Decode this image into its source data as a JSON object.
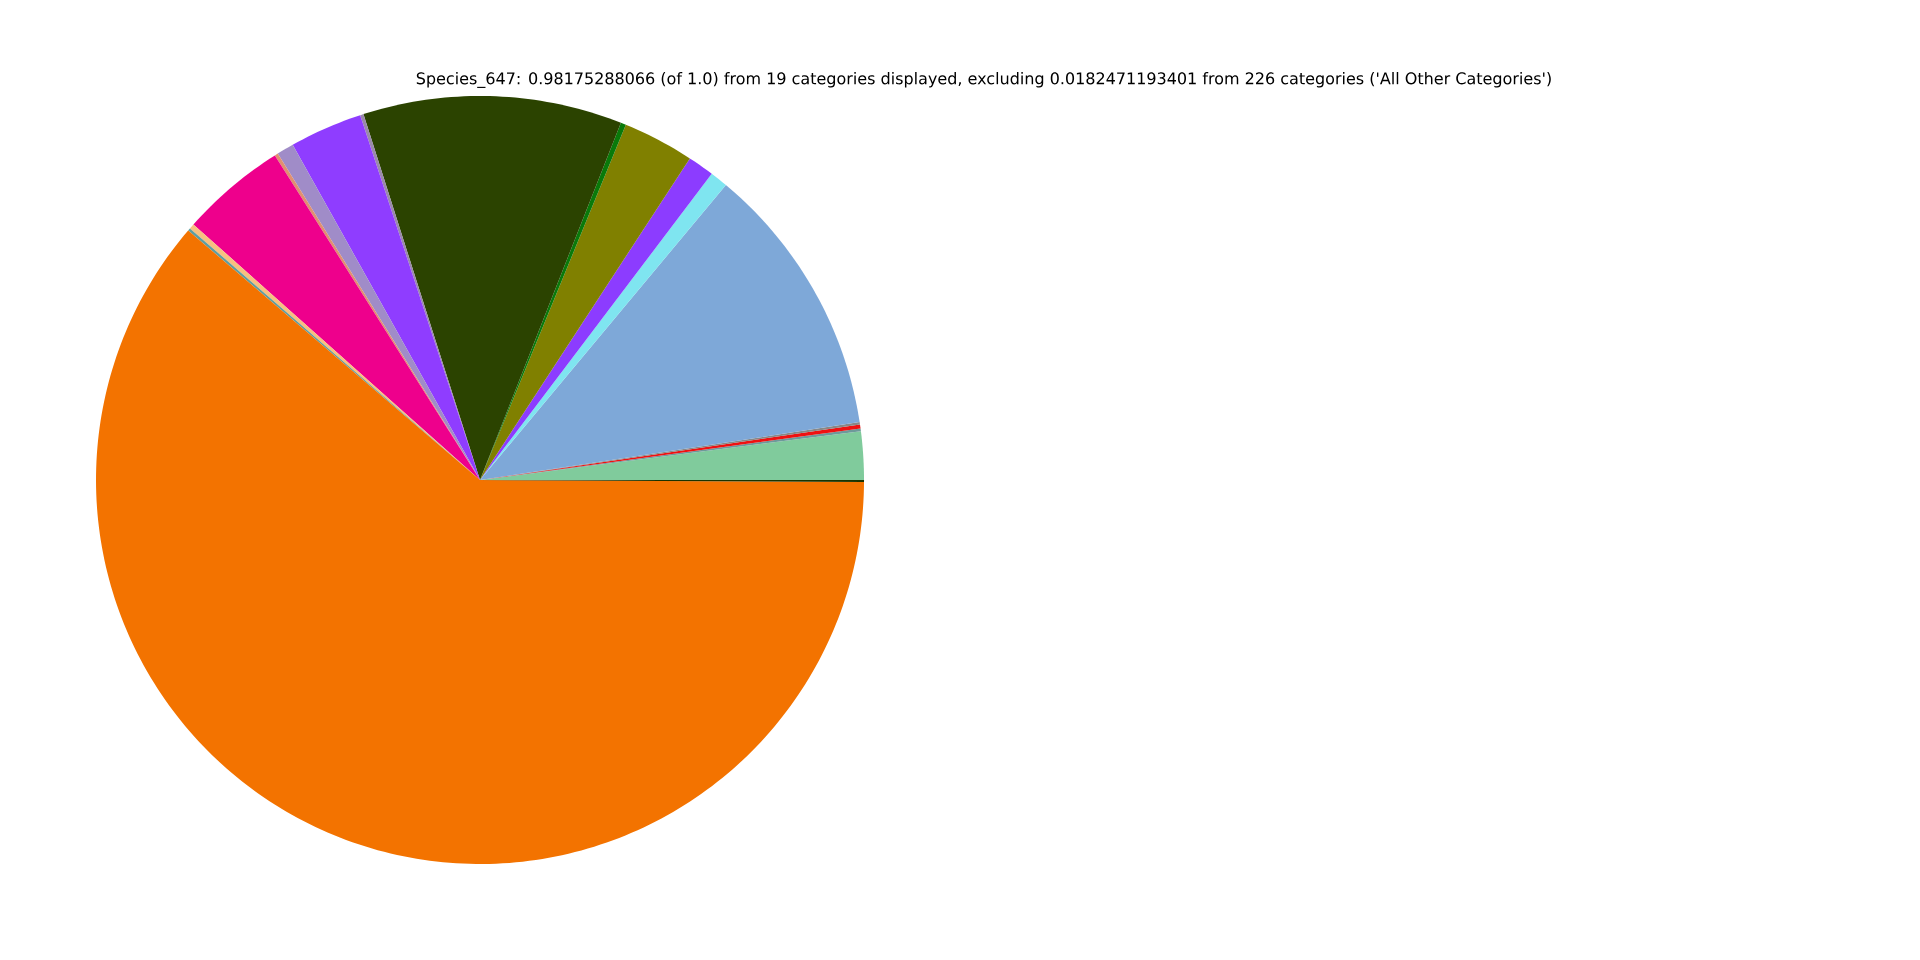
{
  "chart_data": {
    "type": "pie",
    "title": "Species_647: 0.98175288066 (of 1.0) from 19 categories displayed, excluding 0.0182471193401 from 226 categories ('All Other Categories')",
    "categories": [
      null,
      null,
      null,
      null,
      null,
      null,
      null,
      null,
      null,
      null,
      null,
      null,
      null,
      null,
      null,
      null,
      null,
      null,
      null
    ],
    "values": [
      2.03,
      0.11,
      0.17,
      0.1,
      11.53,
      0.75,
      1.11,
      3.0,
      0.22,
      10.89,
      0.14,
      3.06,
      0.72,
      0.14,
      4.44,
      0.22,
      0.11,
      61.18,
      0.08
    ],
    "colors": [
      "#80cb9c",
      "#6d9a9a",
      "#ee1111",
      "#888888",
      "#7ea8d8",
      "#7fe5f0",
      "#8c3cff",
      "#808000",
      "#0a7a0a",
      "#2b4300",
      "#9a8aaa",
      "#8f3dff",
      "#a08cc8",
      "#e09070",
      "#ee008c",
      "#f8c080",
      "#5f9ea0",
      "#f37300",
      "#1a3300"
    ]
  }
}
